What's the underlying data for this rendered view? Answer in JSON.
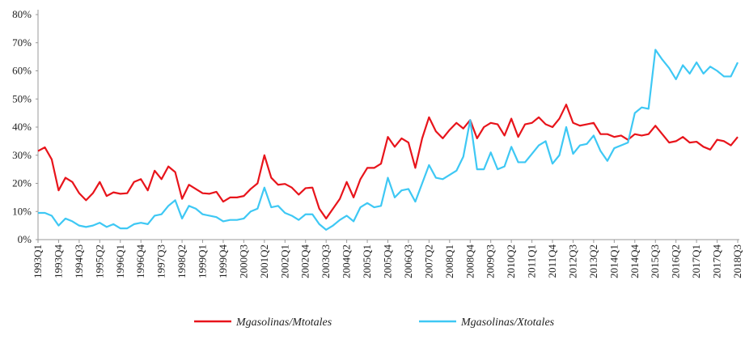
{
  "chart_data": {
    "type": "line",
    "categories": [
      "1993Q1",
      null,
      null,
      "1993Q4",
      null,
      null,
      "1994Q3",
      null,
      null,
      "1995Q2",
      null,
      null,
      "1996Q1",
      null,
      null,
      "1996Q4",
      null,
      null,
      "1997Q3",
      null,
      null,
      "1998Q2",
      null,
      null,
      "1999Q1",
      null,
      null,
      "1999Q4",
      null,
      null,
      "2000Q3",
      null,
      null,
      "2001Q2",
      null,
      null,
      "2002Q1",
      null,
      null,
      "2002Q4",
      null,
      null,
      "2003Q3",
      null,
      null,
      "2004Q2",
      null,
      null,
      "2005Q1",
      null,
      null,
      "2005Q4",
      null,
      null,
      "2006Q3",
      null,
      null,
      "2007Q2",
      null,
      null,
      "2008Q1",
      null,
      null,
      "2008Q4",
      null,
      null,
      "2009Q3",
      null,
      null,
      "2010Q2",
      null,
      null,
      "2011Q1",
      null,
      null,
      "2011Q4",
      null,
      null,
      "2012Q3",
      null,
      null,
      "2013Q2",
      null,
      null,
      "2014Q1",
      null,
      null,
      "2014Q4",
      null,
      null,
      "2015Q3",
      null,
      null,
      "2016Q2",
      null,
      null,
      "2017Q1",
      null,
      null,
      "2017Q4",
      null,
      null,
      "2018Q3"
    ],
    "series": [
      {
        "name": "Mgasolinas/Mtotales",
        "color": "#e8141b",
        "values": [
          31.5,
          32.8,
          28.5,
          17.5,
          22,
          20.5,
          16.5,
          14,
          16.5,
          20.5,
          15.5,
          16.8,
          16.3,
          16.5,
          20.5,
          21.5,
          17.5,
          24.5,
          21.5,
          26,
          24,
          14.5,
          19.5,
          18,
          16.5,
          16.3,
          17,
          13.5,
          15,
          15,
          15.5,
          18,
          20,
          30,
          22,
          19.5,
          19.8,
          18.5,
          16,
          18.3,
          18.5,
          11,
          7.5,
          11,
          14.5,
          20.5,
          15,
          21.5,
          25.5,
          25.5,
          27,
          36.5,
          33,
          36,
          34.5,
          25.5,
          36,
          43.5,
          38.5,
          36,
          39,
          41.5,
          39.5,
          42.5,
          36,
          40,
          41.5,
          41,
          37,
          43,
          36.5,
          41,
          41.5,
          43.5,
          41,
          40,
          43,
          48,
          41.5,
          40.5,
          41,
          41.5,
          37.5,
          37.5,
          36.5,
          37,
          35.5,
          37.5,
          37,
          37.5,
          40.5,
          37.5,
          34.5,
          35,
          36.5,
          34.5,
          34.8,
          33,
          32,
          35.5,
          35,
          33.5,
          36.5
        ]
      },
      {
        "name": "Mgasolinas/Xtotales",
        "color": "#3ec8f4",
        "values": [
          9.5,
          9.5,
          8.5,
          5,
          7.5,
          6.5,
          5,
          4.5,
          5,
          6,
          4.5,
          5.5,
          4,
          4,
          5.5,
          6,
          5.5,
          8.5,
          9,
          12,
          14,
          7.5,
          12,
          11,
          9,
          8.5,
          8,
          6.5,
          7,
          7,
          7.5,
          10,
          11,
          18.5,
          11.5,
          12,
          9.5,
          8.5,
          7,
          9,
          9,
          5.5,
          3.5,
          5,
          7,
          8.5,
          6.5,
          11.5,
          13,
          11.5,
          12,
          22,
          15,
          17.5,
          18,
          13.5,
          20,
          26.5,
          22,
          21.5,
          23,
          24.5,
          29.5,
          42.5,
          25,
          25,
          31,
          25,
          26,
          33,
          27.5,
          27.5,
          30.5,
          33.5,
          35,
          27,
          30,
          40,
          30.5,
          33.5,
          34,
          37,
          31.5,
          28,
          32.5,
          33.5,
          34.5,
          45,
          47,
          46.5,
          67.5,
          64,
          61,
          57,
          62,
          59,
          63,
          59,
          61.5,
          60,
          58,
          58,
          63
        ]
      }
    ],
    "ylim": [
      0,
      80
    ],
    "yticks": [
      {
        "value": 0,
        "label": "0%"
      },
      {
        "value": 10,
        "label": "10%"
      },
      {
        "value": 20,
        "label": "20%"
      },
      {
        "value": 30,
        "label": "30%"
      },
      {
        "value": 40,
        "label": "40%"
      },
      {
        "value": 50,
        "label": "50%"
      },
      {
        "value": 60,
        "label": "60%"
      },
      {
        "value": 70,
        "label": "70%"
      },
      {
        "value": 80,
        "label": "80%"
      }
    ],
    "legend": "bottom"
  }
}
